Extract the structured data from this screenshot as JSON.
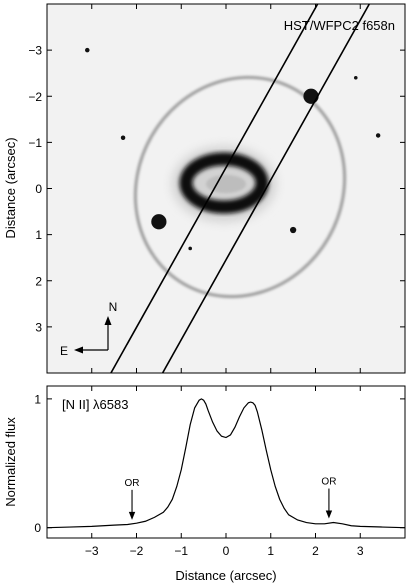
{
  "image_panel": {
    "label": "HST/WFPC2 f658n",
    "ylabel": "Distance (arcsec)",
    "ylim": [
      -4.0,
      4.0
    ],
    "xlim": [
      -4.0,
      4.0
    ],
    "y_ticks": [
      -3,
      -2,
      -1,
      0,
      1,
      2,
      3
    ],
    "y_tick_labels": [
      "−3",
      "−2",
      "−1",
      "0",
      "1",
      "2",
      "3"
    ],
    "compass": {
      "north": "N",
      "east": "E"
    },
    "slit": {
      "width_arcsec": 1.0,
      "position_angle_deg": 150,
      "center": [
        0.2,
        0.2
      ]
    },
    "stars": [
      {
        "x": 1.9,
        "y": -2.0,
        "size": 0.17
      },
      {
        "x": -1.5,
        "y": 0.72,
        "size": 0.17
      },
      {
        "x": 1.5,
        "y": 0.9,
        "size": 0.07
      },
      {
        "x": -3.1,
        "y": -3.0,
        "size": 0.05
      },
      {
        "x": -2.3,
        "y": -1.1,
        "size": 0.05
      },
      {
        "x": 3.4,
        "y": -1.15,
        "size": 0.05
      },
      {
        "x": -0.8,
        "y": 1.3,
        "size": 0.04
      },
      {
        "x": 2.9,
        "y": -2.4,
        "size": 0.04
      }
    ]
  },
  "chart_data": {
    "type": "line",
    "label": "[N II] λ6583",
    "xlabel": "Distance (arcsec)",
    "ylabel": "Normalized flux",
    "xlim": [
      -4.0,
      4.0
    ],
    "ylim": [
      -0.08,
      1.1
    ],
    "x_ticks": [
      -3,
      -2,
      -1,
      0,
      1,
      2,
      3
    ],
    "x_tick_labels": [
      "−3",
      "−2",
      "−1",
      "0",
      "1",
      "2",
      "3"
    ],
    "y_ticks": [
      0,
      1
    ],
    "y_tick_labels": [
      "0",
      "1"
    ],
    "series": [
      {
        "x": [
          -4.0,
          -3.5,
          -3.0,
          -2.5,
          -2.2,
          -2.0,
          -1.8,
          -1.6,
          -1.4,
          -1.3,
          -1.2,
          -1.1,
          -1.0,
          -0.9,
          -0.8,
          -0.7,
          -0.6,
          -0.55,
          -0.5,
          -0.45,
          -0.4,
          -0.3,
          -0.2,
          -0.1,
          0.0,
          0.1,
          0.2,
          0.3,
          0.4,
          0.5,
          0.55,
          0.6,
          0.65,
          0.7,
          0.8,
          0.9,
          1.0,
          1.1,
          1.2,
          1.3,
          1.4,
          1.6,
          1.8,
          2.0,
          2.2,
          2.4,
          2.6,
          2.8,
          3.0,
          3.5,
          4.0
        ],
        "y": [
          0.0,
          0.005,
          0.01,
          0.02,
          0.025,
          0.035,
          0.05,
          0.08,
          0.12,
          0.16,
          0.22,
          0.32,
          0.45,
          0.62,
          0.8,
          0.93,
          0.99,
          1.0,
          0.99,
          0.96,
          0.91,
          0.82,
          0.75,
          0.71,
          0.7,
          0.72,
          0.78,
          0.86,
          0.93,
          0.97,
          0.975,
          0.97,
          0.95,
          0.9,
          0.76,
          0.6,
          0.45,
          0.32,
          0.22,
          0.15,
          0.1,
          0.06,
          0.04,
          0.03,
          0.03,
          0.04,
          0.03,
          0.015,
          0.01,
          0.005,
          0.0
        ]
      }
    ],
    "annotations": [
      {
        "text": "OR",
        "x": -2.1,
        "y": 0.03
      },
      {
        "text": "OR",
        "x": 2.3,
        "y": 0.04
      }
    ]
  }
}
